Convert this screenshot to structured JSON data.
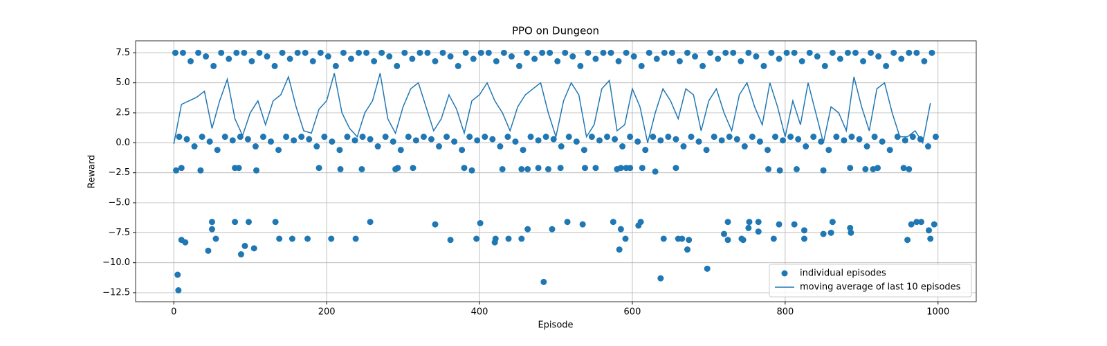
{
  "chart_data": {
    "type": "scatter",
    "title": "PPO on Dungeon",
    "x_label": "Episode",
    "y_label": "Reward",
    "xlim": [
      -50,
      1050
    ],
    "ylim": [
      -13.25,
      8.5
    ],
    "xticks": [
      0,
      200,
      400,
      600,
      800,
      1000
    ],
    "yticks": [
      {
        "value": -12.5,
        "label": "−12.5"
      },
      {
        "value": -10,
        "label": "−10.0"
      },
      {
        "value": -7.5,
        "label": "−7.5"
      },
      {
        "value": -5,
        "label": "−5.0"
      },
      {
        "value": -2.5,
        "label": "−2.5"
      },
      {
        "value": 0,
        "label": "0.0"
      },
      2.5,
      {
        "value": 5,
        "label": "5.0"
      },
      7.5
    ],
    "grid": true,
    "legend": "lower right",
    "series": [
      {
        "name": "individual episodes",
        "type": "scatter",
        "color": "#1f77b4",
        "x": [
          2,
          12,
          22,
          32,
          42,
          52,
          62,
          72,
          82,
          92,
          102,
          112,
          122,
          132,
          142,
          152,
          162,
          172,
          182,
          192,
          202,
          212,
          222,
          232,
          242,
          252,
          262,
          272,
          282,
          292,
          302,
          312,
          322,
          332,
          342,
          352,
          362,
          372,
          382,
          392,
          402,
          412,
          422,
          432,
          442,
          452,
          462,
          472,
          482,
          492,
          502,
          512,
          522,
          532,
          542,
          552,
          562,
          572,
          582,
          592,
          602,
          612,
          622,
          632,
          642,
          652,
          662,
          672,
          682,
          692,
          702,
          712,
          722,
          732,
          742,
          752,
          762,
          772,
          782,
          792,
          802,
          812,
          822,
          832,
          842,
          852,
          862,
          872,
          882,
          892,
          902,
          912,
          922,
          932,
          942,
          952,
          962,
          972,
          982,
          992,
          7,
          17,
          27,
          37,
          47,
          57,
          67,
          77,
          87,
          97,
          107,
          117,
          127,
          137,
          147,
          157,
          167,
          177,
          187,
          197,
          207,
          217,
          227,
          237,
          247,
          257,
          267,
          277,
          287,
          297,
          307,
          317,
          327,
          337,
          347,
          357,
          367,
          377,
          387,
          397,
          407,
          417,
          427,
          437,
          447,
          457,
          467,
          477,
          487,
          497,
          507,
          517,
          527,
          537,
          547,
          557,
          567,
          577,
          587,
          597,
          607,
          617,
          627,
          637,
          647,
          657,
          667,
          677,
          687,
          697,
          707,
          717,
          727,
          737,
          747,
          757,
          767,
          777,
          787,
          797,
          807,
          817,
          827,
          837,
          847,
          857,
          867,
          877,
          887,
          897,
          907,
          917,
          927,
          937,
          947,
          957,
          967,
          977,
          987,
          997,
          3,
          10,
          35,
          80,
          85,
          108,
          190,
          218,
          246,
          290,
          293,
          313,
          380,
          390,
          430,
          455,
          463,
          477,
          490,
          506,
          538,
          552,
          580,
          585,
          592,
          597,
          613,
          630,
          657,
          778,
          793,
          815,
          850,
          885,
          905,
          915,
          921,
          955,
          962,
          5,
          6,
          10,
          15,
          45,
          50,
          50,
          55,
          80,
          88,
          93,
          98,
          105,
          133,
          138,
          155,
          175,
          206,
          238,
          257,
          342,
          362,
          396,
          401,
          420,
          421,
          438,
          455,
          463,
          484,
          495,
          515,
          535,
          575,
          583,
          585,
          591,
          608,
          611,
          637,
          641,
          660,
          665,
          672,
          674,
          698,
          720,
          725,
          725,
          743,
          745,
          752,
          753,
          765,
          765,
          785,
          792,
          812,
          825,
          825,
          850,
          860,
          862,
          885,
          886,
          960,
          965,
          972,
          978,
          988,
          990,
          995
        ],
        "values": [
          7.5,
          7.5,
          6.8,
          7.5,
          7.2,
          6.4,
          7.5,
          7.0,
          7.5,
          7.5,
          6.8,
          7.5,
          7.2,
          6.4,
          7.5,
          7.0,
          7.5,
          7.5,
          6.8,
          7.5,
          7.2,
          6.4,
          7.5,
          7.0,
          7.5,
          7.5,
          6.8,
          7.5,
          7.2,
          6.4,
          7.5,
          7.0,
          7.5,
          7.5,
          6.8,
          7.5,
          7.2,
          6.4,
          7.5,
          7.0,
          7.5,
          7.5,
          6.8,
          7.5,
          7.2,
          6.4,
          7.5,
          7.0,
          7.5,
          7.5,
          6.8,
          7.5,
          7.2,
          6.4,
          7.5,
          7.0,
          7.5,
          7.5,
          6.8,
          7.5,
          7.2,
          6.4,
          7.5,
          7.0,
          7.5,
          7.5,
          6.8,
          7.5,
          7.2,
          6.4,
          7.5,
          7.0,
          7.5,
          7.5,
          6.8,
          7.5,
          7.2,
          6.4,
          7.5,
          7.0,
          7.5,
          7.5,
          6.8,
          7.5,
          7.2,
          6.4,
          7.5,
          7.0,
          7.5,
          7.5,
          6.8,
          7.5,
          7.2,
          6.4,
          7.5,
          7.0,
          7.5,
          7.5,
          6.8,
          7.5,
          0.5,
          0.3,
          -0.3,
          0.5,
          0.1,
          -0.6,
          0.5,
          0.2,
          0.5,
          0.3,
          -0.3,
          0.5,
          0.1,
          -0.6,
          0.5,
          0.2,
          0.5,
          0.3,
          -0.3,
          0.5,
          0.1,
          -0.6,
          0.5,
          0.2,
          0.5,
          0.3,
          -0.3,
          0.5,
          0.1,
          -0.6,
          0.5,
          0.2,
          0.5,
          0.3,
          -0.3,
          0.5,
          0.1,
          -0.6,
          0.5,
          0.2,
          0.5,
          0.3,
          -0.3,
          0.5,
          0.1,
          -0.6,
          0.5,
          0.2,
          0.5,
          0.3,
          -0.3,
          0.5,
          0.1,
          -0.6,
          0.5,
          0.2,
          0.5,
          0.3,
          -0.3,
          0.5,
          0.1,
          -0.6,
          0.5,
          0.2,
          0.5,
          0.3,
          -0.3,
          0.5,
          0.1,
          -0.6,
          0.5,
          0.2,
          0.5,
          0.3,
          -0.3,
          0.5,
          0.1,
          -0.6,
          0.5,
          0.2,
          0.5,
          0.3,
          -0.3,
          0.5,
          0.1,
          -0.6,
          0.5,
          0.2,
          0.5,
          0.3,
          -0.3,
          0.5,
          0.1,
          -0.6,
          0.5,
          0.2,
          0.5,
          0.3,
          -0.3,
          0.5,
          -2.3,
          -2.1,
          -2.3,
          -2.1,
          -2.1,
          -2.3,
          -2.1,
          -2.2,
          -2.2,
          -2.2,
          -2.1,
          -2.1,
          -2.1,
          -2.3,
          -2.2,
          -2.2,
          -2.2,
          -2.1,
          -2.2,
          -2.1,
          -2.1,
          -2.1,
          -2.2,
          -2.1,
          -2.1,
          -2.1,
          -2.1,
          -2.4,
          -2.1,
          -2.2,
          -2.3,
          -2.2,
          -2.3,
          -2.1,
          -2.2,
          -2.2,
          -2.1,
          -2.1,
          -2.2,
          -11,
          -12.3,
          -8.1,
          -8.3,
          -9,
          -6.6,
          -7.2,
          -8,
          -6.6,
          -9.3,
          -8.6,
          -6.6,
          -8.8,
          -6.6,
          -8,
          -8,
          -8,
          -8,
          -8,
          -6.6,
          -6.8,
          -8.1,
          -8,
          -6.7,
          -8.3,
          -8,
          -8,
          -8,
          -7.2,
          -11.6,
          -7.2,
          -6.6,
          -6.8,
          -6.6,
          -8.9,
          -7.2,
          -8,
          -6.9,
          -6.6,
          -11.3,
          -8,
          -8,
          -8,
          -8.9,
          -8.1,
          -10.5,
          -7.6,
          -6.6,
          -8.1,
          -8,
          -8.1,
          -7.1,
          -6.6,
          -6.6,
          -7.4,
          -8,
          -6.8,
          -6.8,
          -7.3,
          -8,
          -7.6,
          -7.5,
          -6.6,
          -7.1,
          -7.5,
          -8.1,
          -6.8,
          -6.6,
          -6.6,
          -7.3,
          -8,
          -6.8
        ]
      },
      {
        "name": "moving average of last 10 episodes",
        "type": "line",
        "color": "#1f77b4",
        "x": [
          0,
          10,
          20,
          30,
          40,
          50,
          60,
          70,
          80,
          90,
          100,
          110,
          120,
          130,
          140,
          150,
          160,
          170,
          180,
          190,
          200,
          210,
          220,
          230,
          240,
          250,
          260,
          270,
          280,
          290,
          300,
          310,
          320,
          330,
          340,
          350,
          360,
          370,
          380,
          390,
          400,
          410,
          420,
          430,
          440,
          450,
          460,
          470,
          480,
          490,
          500,
          510,
          520,
          530,
          540,
          550,
          560,
          570,
          580,
          590,
          600,
          610,
          620,
          630,
          640,
          650,
          660,
          670,
          680,
          690,
          700,
          710,
          720,
          730,
          740,
          750,
          760,
          770,
          780,
          790,
          800,
          810,
          820,
          830,
          840,
          850,
          860,
          870,
          880,
          890,
          900,
          910,
          920,
          930,
          940,
          950,
          960,
          970,
          980,
          990
        ],
        "values": [
          -0.1,
          3.2,
          3.5,
          3.8,
          4.3,
          1.2,
          3.5,
          5.3,
          2.0,
          0.6,
          2.5,
          3.5,
          1.5,
          3.5,
          4.0,
          5.5,
          3.0,
          1.0,
          0.8,
          2.8,
          3.5,
          5.8,
          2.5,
          1.2,
          0.5,
          2.5,
          3.5,
          5.8,
          2.0,
          0.8,
          3.0,
          4.5,
          5.0,
          3.0,
          1.0,
          2.0,
          4.0,
          2.8,
          0.8,
          3.5,
          4.0,
          5.0,
          3.5,
          2.5,
          1.0,
          3.0,
          4.0,
          4.5,
          5.0,
          2.5,
          0.5,
          3.5,
          5.0,
          4.0,
          0.5,
          1.5,
          4.5,
          5.2,
          1.0,
          1.5,
          4.5,
          3.0,
          0.0,
          2.5,
          4.5,
          3.5,
          2.0,
          4.5,
          4.0,
          1.0,
          3.5,
          4.5,
          2.5,
          1.0,
          4.0,
          5.0,
          3.0,
          1.5,
          5.0,
          3.0,
          0.5,
          3.5,
          1.5,
          5.0,
          2.5,
          0.0,
          3.0,
          2.5,
          1.0,
          5.5,
          3.0,
          1.0,
          4.5,
          5.0,
          2.5,
          0.5,
          0.5,
          1.0,
          0.0,
          3.3
        ]
      }
    ]
  }
}
